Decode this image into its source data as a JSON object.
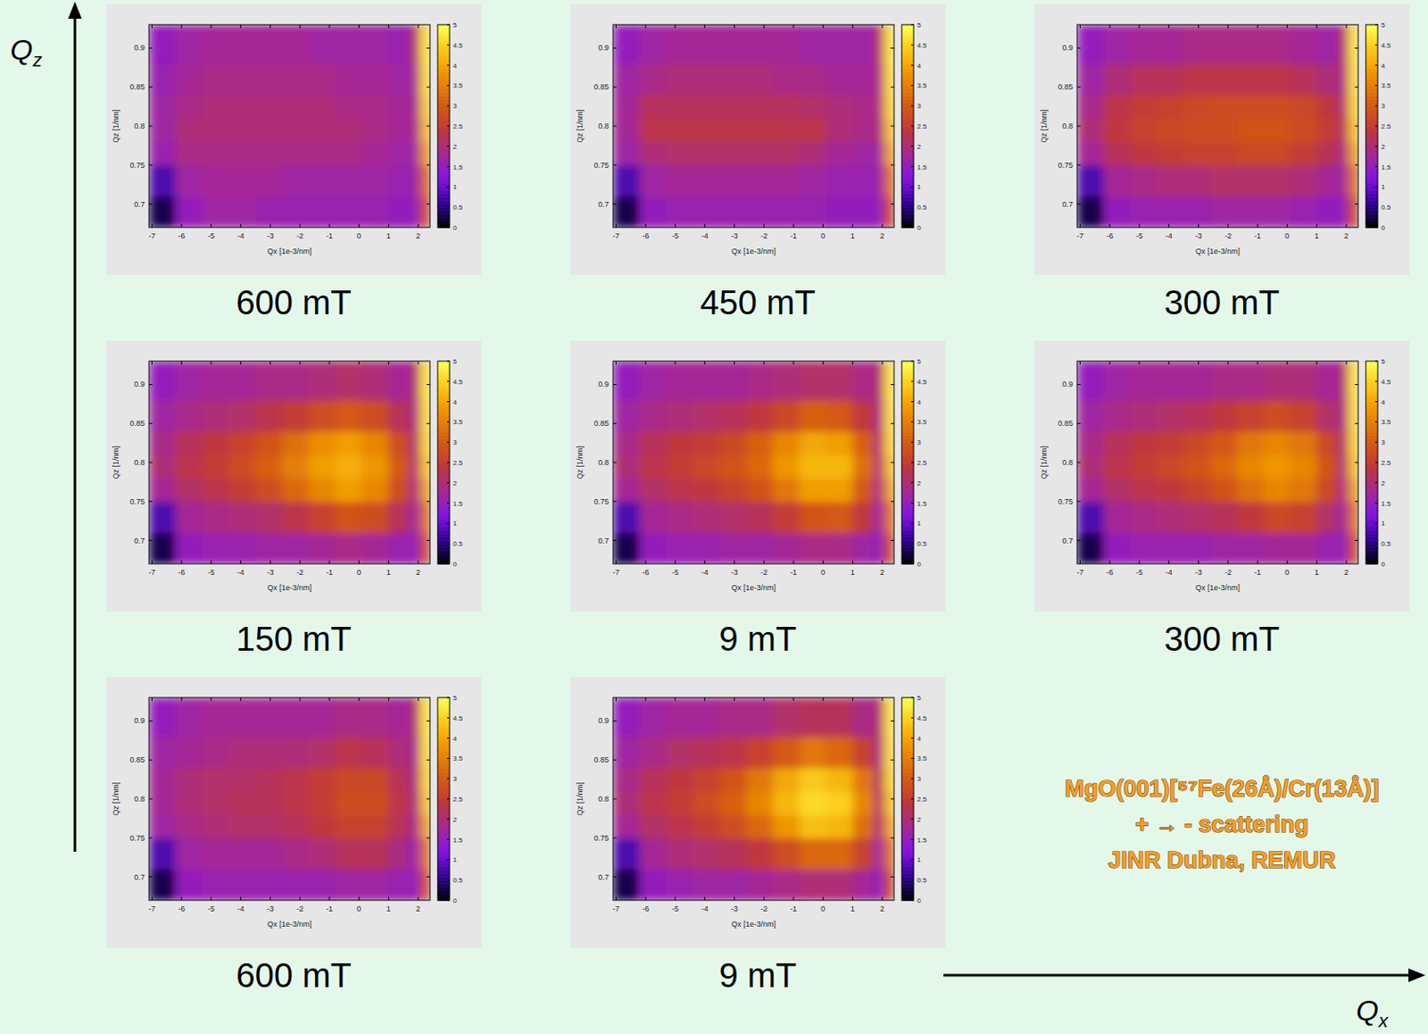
{
  "chart_data": [
    {
      "type": "heatmap",
      "title": "600 mT",
      "x_label": "Qx [1e-3/nm]",
      "y_label": "Qz [1/nm]",
      "xlim": [
        -7.1,
        2.4
      ],
      "ylim": [
        0.67,
        0.93
      ],
      "xticks": [
        -7,
        -6,
        -5,
        -4,
        -3,
        -2,
        -1,
        0,
        1,
        2
      ],
      "yticks": [
        0.7,
        0.75,
        0.8,
        0.85,
        0.9
      ],
      "x_edges": [
        -7.1,
        -6.2,
        -5.3,
        -4.4,
        -3.5,
        -2.6,
        -1.7,
        -0.8,
        0.1,
        1.0,
        1.7,
        2.05,
        2.4
      ],
      "y_edges": [
        0.67,
        0.71,
        0.75,
        0.78,
        0.81,
        0.84,
        0.88,
        0.93
      ],
      "cells": [
        [
          0.3,
          1.5,
          1.7,
          1.7,
          1.6,
          1.6,
          1.6,
          1.6,
          1.6,
          1.5,
          1.5,
          2.8
        ],
        [
          0.8,
          1.7,
          1.8,
          1.8,
          1.8,
          1.7,
          1.7,
          1.7,
          1.7,
          1.6,
          1.6,
          3.2
        ],
        [
          1.6,
          1.9,
          1.9,
          1.9,
          1.9,
          1.9,
          1.9,
          1.9,
          1.8,
          1.7,
          1.7,
          3.8
        ],
        [
          1.7,
          2.0,
          2.0,
          2.0,
          2.0,
          2.0,
          2.0,
          2.0,
          1.9,
          1.8,
          1.8,
          4.2
        ],
        [
          1.7,
          1.9,
          2.0,
          2.0,
          2.0,
          2.0,
          2.0,
          1.9,
          1.9,
          1.8,
          1.8,
          4.4
        ],
        [
          1.6,
          1.8,
          1.9,
          1.9,
          1.9,
          1.9,
          1.9,
          1.8,
          1.8,
          1.7,
          1.8,
          4.6
        ],
        [
          1.5,
          1.7,
          1.8,
          1.8,
          1.8,
          1.8,
          1.7,
          1.7,
          1.7,
          1.6,
          2.0,
          4.7
        ]
      ],
      "colorbar_range": [
        0,
        5
      ],
      "colorbar_ticks": [
        0,
        0.5,
        1,
        1.5,
        2,
        2.5,
        3,
        3.5,
        4,
        4.5,
        5
      ]
    },
    {
      "type": "heatmap",
      "title": "450 mT",
      "x_label": "Qx [1e-3/nm]",
      "y_label": "Qz [1/nm]",
      "xlim": [
        -7.1,
        2.4
      ],
      "ylim": [
        0.67,
        0.93
      ],
      "xticks": [
        -7,
        -6,
        -5,
        -4,
        -3,
        -2,
        -1,
        0,
        1,
        2
      ],
      "yticks": [
        0.7,
        0.75,
        0.8,
        0.85,
        0.9
      ],
      "x_edges": [
        -7.1,
        -6.2,
        -5.3,
        -4.4,
        -3.5,
        -2.6,
        -1.7,
        -0.8,
        0.1,
        1.0,
        1.7,
        2.05,
        2.4
      ],
      "y_edges": [
        0.67,
        0.71,
        0.75,
        0.78,
        0.81,
        0.84,
        0.88,
        0.93
      ],
      "cells": [
        [
          0.3,
          1.5,
          1.6,
          1.6,
          1.6,
          1.6,
          1.6,
          1.6,
          1.5,
          1.5,
          1.5,
          2.8
        ],
        [
          0.8,
          1.7,
          1.8,
          1.8,
          1.8,
          1.8,
          1.8,
          1.7,
          1.6,
          1.6,
          1.6,
          3.3
        ],
        [
          1.7,
          2.0,
          2.1,
          2.1,
          2.1,
          2.1,
          2.1,
          2.0,
          1.8,
          1.7,
          1.7,
          3.9
        ],
        [
          1.8,
          2.3,
          2.3,
          2.3,
          2.3,
          2.3,
          2.3,
          2.3,
          2.0,
          1.9,
          1.9,
          4.3
        ],
        [
          1.8,
          2.2,
          2.2,
          2.2,
          2.2,
          2.2,
          2.2,
          2.1,
          2.0,
          1.9,
          1.9,
          4.5
        ],
        [
          1.7,
          1.9,
          2.0,
          2.0,
          2.0,
          2.0,
          1.9,
          1.9,
          1.8,
          1.8,
          1.9,
          4.6
        ],
        [
          1.5,
          1.7,
          1.8,
          1.8,
          1.8,
          1.8,
          1.8,
          1.7,
          1.7,
          1.7,
          2.0,
          4.7
        ]
      ],
      "colorbar_range": [
        0,
        5
      ],
      "colorbar_ticks": [
        0,
        0.5,
        1,
        1.5,
        2,
        2.5,
        3,
        3.5,
        4,
        4.5,
        5
      ]
    },
    {
      "type": "heatmap",
      "title": "300 mT",
      "x_label": "Qx [1e-3/nm]",
      "y_label": "Qz [1/nm]",
      "xlim": [
        -7.1,
        2.4
      ],
      "ylim": [
        0.67,
        0.93
      ],
      "xticks": [
        -7,
        -6,
        -5,
        -4,
        -3,
        -2,
        -1,
        0,
        1,
        2
      ],
      "yticks": [
        0.7,
        0.75,
        0.8,
        0.85,
        0.9
      ],
      "x_edges": [
        -7.1,
        -6.2,
        -5.3,
        -4.4,
        -3.5,
        -2.6,
        -1.7,
        -0.8,
        0.1,
        1.0,
        1.7,
        2.05,
        2.4
      ],
      "y_edges": [
        0.67,
        0.71,
        0.75,
        0.78,
        0.81,
        0.84,
        0.88,
        0.93
      ],
      "cells": [
        [
          0.3,
          1.5,
          1.6,
          1.6,
          1.6,
          1.7,
          1.7,
          1.7,
          1.6,
          1.5,
          1.5,
          2.8
        ],
        [
          0.8,
          1.8,
          1.9,
          2.0,
          2.0,
          2.1,
          2.1,
          2.1,
          2.0,
          1.8,
          1.7,
          3.3
        ],
        [
          1.8,
          2.2,
          2.4,
          2.5,
          2.6,
          2.6,
          2.7,
          2.7,
          2.5,
          2.2,
          1.9,
          3.9
        ],
        [
          2.0,
          2.4,
          2.6,
          2.7,
          2.8,
          2.8,
          2.9,
          2.9,
          2.8,
          2.5,
          2.1,
          4.3
        ],
        [
          1.9,
          2.3,
          2.5,
          2.6,
          2.7,
          2.8,
          2.8,
          2.8,
          2.7,
          2.4,
          2.0,
          4.5
        ],
        [
          1.7,
          2.0,
          2.2,
          2.2,
          2.3,
          2.3,
          2.3,
          2.3,
          2.2,
          2.0,
          1.9,
          4.6
        ],
        [
          1.5,
          1.7,
          1.8,
          1.8,
          1.9,
          1.9,
          1.9,
          1.9,
          1.8,
          1.7,
          2.0,
          4.7
        ]
      ],
      "colorbar_range": [
        0,
        5
      ],
      "colorbar_ticks": [
        0,
        0.5,
        1,
        1.5,
        2,
        2.5,
        3,
        3.5,
        4,
        4.5,
        5
      ]
    },
    {
      "type": "heatmap",
      "title": "150 mT",
      "x_label": "Qx [1e-3/nm]",
      "y_label": "Qz [1/nm]",
      "xlim": [
        -7.1,
        2.4
      ],
      "ylim": [
        0.67,
        0.93
      ],
      "xticks": [
        -7,
        -6,
        -5,
        -4,
        -3,
        -2,
        -1,
        0,
        1,
        2
      ],
      "yticks": [
        0.7,
        0.75,
        0.8,
        0.85,
        0.9
      ],
      "x_edges": [
        -7.1,
        -6.2,
        -5.3,
        -4.4,
        -3.5,
        -2.6,
        -1.7,
        -0.8,
        0.1,
        1.0,
        1.7,
        2.05,
        2.4
      ],
      "y_edges": [
        0.67,
        0.71,
        0.75,
        0.78,
        0.81,
        0.84,
        0.88,
        0.93
      ],
      "cells": [
        [
          0.3,
          1.5,
          1.6,
          1.6,
          1.7,
          1.7,
          1.8,
          1.9,
          1.8,
          1.6,
          1.5,
          2.8
        ],
        [
          0.8,
          1.8,
          1.9,
          2.0,
          2.1,
          2.3,
          2.6,
          2.9,
          2.8,
          2.2,
          1.7,
          3.3
        ],
        [
          1.8,
          2.1,
          2.3,
          2.5,
          2.8,
          3.2,
          3.6,
          3.9,
          3.6,
          2.8,
          1.9,
          3.9
        ],
        [
          2.0,
          2.3,
          2.5,
          2.8,
          3.1,
          3.5,
          3.9,
          4.1,
          3.8,
          3.0,
          2.0,
          4.3
        ],
        [
          1.9,
          2.2,
          2.4,
          2.6,
          2.9,
          3.3,
          3.7,
          3.9,
          3.6,
          2.8,
          2.0,
          4.5
        ],
        [
          1.7,
          1.9,
          2.0,
          2.1,
          2.3,
          2.5,
          2.8,
          3.0,
          2.8,
          2.2,
          1.9,
          4.6
        ],
        [
          1.5,
          1.7,
          1.8,
          1.8,
          1.9,
          1.9,
          2.0,
          2.1,
          2.0,
          1.8,
          2.0,
          4.7
        ]
      ],
      "colorbar_range": [
        0,
        5
      ],
      "colorbar_ticks": [
        0,
        0.5,
        1,
        1.5,
        2,
        2.5,
        3,
        3.5,
        4,
        4.5,
        5
      ]
    },
    {
      "type": "heatmap",
      "title": "9 mT",
      "x_label": "Qx [1e-3/nm]",
      "y_label": "Qz [1/nm]",
      "xlim": [
        -7.1,
        2.4
      ],
      "ylim": [
        0.67,
        0.93
      ],
      "xticks": [
        -7,
        -6,
        -5,
        -4,
        -3,
        -2,
        -1,
        0,
        1,
        2
      ],
      "yticks": [
        0.7,
        0.75,
        0.8,
        0.85,
        0.9
      ],
      "x_edges": [
        -7.1,
        -6.2,
        -5.3,
        -4.4,
        -3.5,
        -2.6,
        -1.7,
        -0.8,
        0.1,
        1.0,
        1.7,
        2.05,
        2.4
      ],
      "y_edges": [
        0.67,
        0.71,
        0.75,
        0.78,
        0.81,
        0.84,
        0.88,
        0.93
      ],
      "cells": [
        [
          0.3,
          1.5,
          1.6,
          1.6,
          1.7,
          1.7,
          1.8,
          1.9,
          1.9,
          1.7,
          1.5,
          2.8
        ],
        [
          0.8,
          1.8,
          1.9,
          2.0,
          2.1,
          2.2,
          2.5,
          2.9,
          3.0,
          2.4,
          1.7,
          3.3
        ],
        [
          1.8,
          2.1,
          2.3,
          2.4,
          2.6,
          2.9,
          3.4,
          3.9,
          3.9,
          3.0,
          1.9,
          3.9
        ],
        [
          2.0,
          2.3,
          2.5,
          2.7,
          2.9,
          3.2,
          3.8,
          4.2,
          4.2,
          3.3,
          2.0,
          4.3
        ],
        [
          1.9,
          2.2,
          2.4,
          2.5,
          2.7,
          3.1,
          3.6,
          4.0,
          3.9,
          3.1,
          2.0,
          4.5
        ],
        [
          1.7,
          1.9,
          2.0,
          2.1,
          2.2,
          2.4,
          2.7,
          3.1,
          3.0,
          2.4,
          1.9,
          4.6
        ],
        [
          1.5,
          1.7,
          1.8,
          1.8,
          1.8,
          1.9,
          2.0,
          2.1,
          2.1,
          1.9,
          2.0,
          4.7
        ]
      ],
      "colorbar_range": [
        0,
        5
      ],
      "colorbar_ticks": [
        0,
        0.5,
        1,
        1.5,
        2,
        2.5,
        3,
        3.5,
        4,
        4.5,
        5
      ]
    },
    {
      "type": "heatmap",
      "title": "300 mT",
      "x_label": "Qx [1e-3/nm]",
      "y_label": "Qz [1/nm]",
      "xlim": [
        -7.1,
        2.4
      ],
      "ylim": [
        0.67,
        0.93
      ],
      "xticks": [
        -7,
        -6,
        -5,
        -4,
        -3,
        -2,
        -1,
        0,
        1,
        2
      ],
      "yticks": [
        0.7,
        0.75,
        0.8,
        0.85,
        0.9
      ],
      "x_edges": [
        -7.1,
        -6.2,
        -5.3,
        -4.4,
        -3.5,
        -2.6,
        -1.7,
        -0.8,
        0.1,
        1.0,
        1.7,
        2.05,
        2.4
      ],
      "y_edges": [
        0.67,
        0.71,
        0.75,
        0.78,
        0.81,
        0.84,
        0.88,
        0.93
      ],
      "cells": [
        [
          0.3,
          1.5,
          1.6,
          1.6,
          1.6,
          1.7,
          1.7,
          1.8,
          1.8,
          1.6,
          1.5,
          2.8
        ],
        [
          0.8,
          1.8,
          1.9,
          2.0,
          2.1,
          2.2,
          2.4,
          2.7,
          2.6,
          2.1,
          1.7,
          3.3
        ],
        [
          1.8,
          2.1,
          2.3,
          2.4,
          2.6,
          2.9,
          3.3,
          3.6,
          3.4,
          2.7,
          1.9,
          3.9
        ],
        [
          2.0,
          2.3,
          2.5,
          2.7,
          2.9,
          3.2,
          3.6,
          3.8,
          3.6,
          2.9,
          2.0,
          4.3
        ],
        [
          1.9,
          2.2,
          2.4,
          2.5,
          2.7,
          3.0,
          3.4,
          3.6,
          3.4,
          2.7,
          2.0,
          4.5
        ],
        [
          1.7,
          1.9,
          2.0,
          2.1,
          2.2,
          2.4,
          2.6,
          2.8,
          2.6,
          2.1,
          1.9,
          4.6
        ],
        [
          1.5,
          1.7,
          1.8,
          1.8,
          1.8,
          1.9,
          1.9,
          2.0,
          2.0,
          1.8,
          2.0,
          4.7
        ]
      ],
      "colorbar_range": [
        0,
        5
      ],
      "colorbar_ticks": [
        0,
        0.5,
        1,
        1.5,
        2,
        2.5,
        3,
        3.5,
        4,
        4.5,
        5
      ]
    },
    {
      "type": "heatmap",
      "title": "600 mT",
      "x_label": "Qx [1e-3/nm]",
      "y_label": "Qz [1/nm]",
      "xlim": [
        -7.1,
        2.4
      ],
      "ylim": [
        0.67,
        0.93
      ],
      "xticks": [
        -7,
        -6,
        -5,
        -4,
        -3,
        -2,
        -1,
        0,
        1,
        2
      ],
      "yticks": [
        0.7,
        0.75,
        0.8,
        0.85,
        0.9
      ],
      "x_edges": [
        -7.1,
        -6.2,
        -5.3,
        -4.4,
        -3.5,
        -2.6,
        -1.7,
        -0.8,
        0.1,
        1.0,
        1.7,
        2.05,
        2.4
      ],
      "y_edges": [
        0.67,
        0.71,
        0.75,
        0.78,
        0.81,
        0.84,
        0.88,
        0.93
      ],
      "cells": [
        [
          0.3,
          1.5,
          1.6,
          1.6,
          1.6,
          1.6,
          1.6,
          1.7,
          1.7,
          1.6,
          1.5,
          2.8
        ],
        [
          0.8,
          1.7,
          1.8,
          1.8,
          1.8,
          1.9,
          2.0,
          2.2,
          2.2,
          1.9,
          1.6,
          3.3
        ],
        [
          1.7,
          1.9,
          2.0,
          2.1,
          2.1,
          2.2,
          2.4,
          2.6,
          2.6,
          2.2,
          1.8,
          3.9
        ],
        [
          1.8,
          2.0,
          2.1,
          2.2,
          2.2,
          2.3,
          2.5,
          2.8,
          2.8,
          2.3,
          1.9,
          4.3
        ],
        [
          1.8,
          2.0,
          2.1,
          2.1,
          2.2,
          2.3,
          2.5,
          2.7,
          2.7,
          2.2,
          1.9,
          4.5
        ],
        [
          1.7,
          1.8,
          1.9,
          2.0,
          2.0,
          2.0,
          2.1,
          2.3,
          2.2,
          2.0,
          1.8,
          4.6
        ],
        [
          1.5,
          1.7,
          1.8,
          1.8,
          1.8,
          1.8,
          1.8,
          1.9,
          1.9,
          1.8,
          2.0,
          4.7
        ]
      ],
      "colorbar_range": [
        0,
        5
      ],
      "colorbar_ticks": [
        0,
        0.5,
        1,
        1.5,
        2,
        2.5,
        3,
        3.5,
        4,
        4.5,
        5
      ]
    },
    {
      "type": "heatmap",
      "title": "9 mT",
      "x_label": "Qx [1e-3/nm]",
      "y_label": "Qz [1/nm]",
      "xlim": [
        -7.1,
        2.4
      ],
      "ylim": [
        0.67,
        0.93
      ],
      "xticks": [
        -7,
        -6,
        -5,
        -4,
        -3,
        -2,
        -1,
        0,
        1,
        2
      ],
      "yticks": [
        0.7,
        0.75,
        0.8,
        0.85,
        0.9
      ],
      "x_edges": [
        -7.1,
        -6.2,
        -5.3,
        -4.4,
        -3.5,
        -2.6,
        -1.7,
        -0.8,
        0.1,
        1.0,
        1.7,
        2.05,
        2.4
      ],
      "y_edges": [
        0.67,
        0.71,
        0.75,
        0.78,
        0.81,
        0.84,
        0.88,
        0.93
      ],
      "cells": [
        [
          0.3,
          1.5,
          1.6,
          1.7,
          1.7,
          1.8,
          1.9,
          2.0,
          2.0,
          1.8,
          1.5,
          2.8
        ],
        [
          0.8,
          1.8,
          2.0,
          2.1,
          2.2,
          2.4,
          2.8,
          3.2,
          3.2,
          2.6,
          1.7,
          3.3
        ],
        [
          1.8,
          2.1,
          2.3,
          2.5,
          2.8,
          3.2,
          3.8,
          4.3,
          4.2,
          3.3,
          2.0,
          3.9
        ],
        [
          2.0,
          2.3,
          2.5,
          2.8,
          3.1,
          3.6,
          4.2,
          4.6,
          4.5,
          3.6,
          2.1,
          4.3
        ],
        [
          1.9,
          2.2,
          2.4,
          2.6,
          2.9,
          3.4,
          4.0,
          4.4,
          4.2,
          3.4,
          2.1,
          4.5
        ],
        [
          1.7,
          1.9,
          2.1,
          2.2,
          2.3,
          2.6,
          3.0,
          3.4,
          3.2,
          2.6,
          1.9,
          4.6
        ],
        [
          1.5,
          1.7,
          1.8,
          1.8,
          1.9,
          1.9,
          2.1,
          2.2,
          2.2,
          1.9,
          2.0,
          4.7
        ]
      ],
      "colorbar_range": [
        0,
        5
      ],
      "colorbar_ticks": [
        0,
        0.5,
        1,
        1.5,
        2,
        2.5,
        3,
        3.5,
        4,
        4.5,
        5
      ]
    }
  ],
  "page": {
    "y_axis": {
      "text": "Q",
      "sub": "z"
    },
    "x_axis": {
      "text": "Q",
      "sub": "x"
    },
    "note": [
      "MgO(001)[⁵⁷Fe(26Å)/Cr(13Å)]",
      "+ → -  scattering",
      "JINR Dubna, REMUR"
    ]
  }
}
